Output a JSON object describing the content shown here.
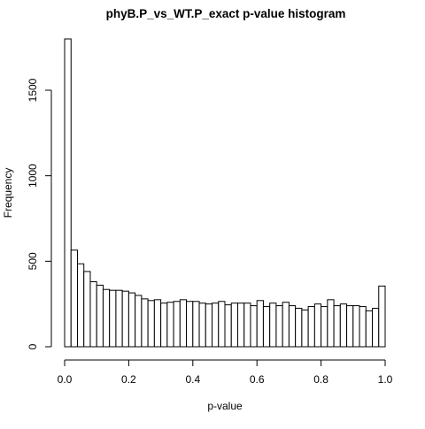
{
  "chart_data": {
    "type": "bar",
    "title": "phyB.P_vs_WT.P_exact p-value histogram",
    "xlabel": "p-value",
    "ylabel": "Frequency",
    "xlim": [
      0,
      1
    ],
    "ylim": [
      0,
      1800
    ],
    "x_ticks": [
      0.0,
      0.2,
      0.4,
      0.6,
      0.8,
      1.0
    ],
    "x_tick_labels": [
      "0.0",
      "0.2",
      "0.4",
      "0.6",
      "0.8",
      "1.0"
    ],
    "y_ticks": [
      0,
      500,
      1000,
      1500
    ],
    "y_tick_labels": [
      "0",
      "500",
      "1000",
      "1500"
    ],
    "bin_width": 0.02,
    "bin_starts": [
      0.0,
      0.02,
      0.04,
      0.06,
      0.08,
      0.1,
      0.12,
      0.14,
      0.16,
      0.18,
      0.2,
      0.22,
      0.24,
      0.26,
      0.28,
      0.3,
      0.32,
      0.34,
      0.36,
      0.38,
      0.4,
      0.42,
      0.44,
      0.46,
      0.48,
      0.5,
      0.52,
      0.54,
      0.56,
      0.58,
      0.6,
      0.62,
      0.64,
      0.66,
      0.68,
      0.7,
      0.72,
      0.74,
      0.76,
      0.78,
      0.8,
      0.82,
      0.84,
      0.86,
      0.88,
      0.9,
      0.92,
      0.94,
      0.96,
      0.98
    ],
    "values": [
      1800,
      565,
      485,
      440,
      380,
      360,
      335,
      330,
      330,
      325,
      315,
      300,
      280,
      270,
      275,
      255,
      260,
      265,
      275,
      265,
      265,
      255,
      250,
      255,
      265,
      245,
      255,
      255,
      255,
      240,
      270,
      235,
      255,
      240,
      260,
      240,
      225,
      215,
      235,
      250,
      235,
      275,
      240,
      250,
      240,
      240,
      235,
      210,
      225,
      355
    ],
    "fill_color": "#ffffff",
    "stroke_color": "#000000",
    "grid": false,
    "legend": "none"
  }
}
